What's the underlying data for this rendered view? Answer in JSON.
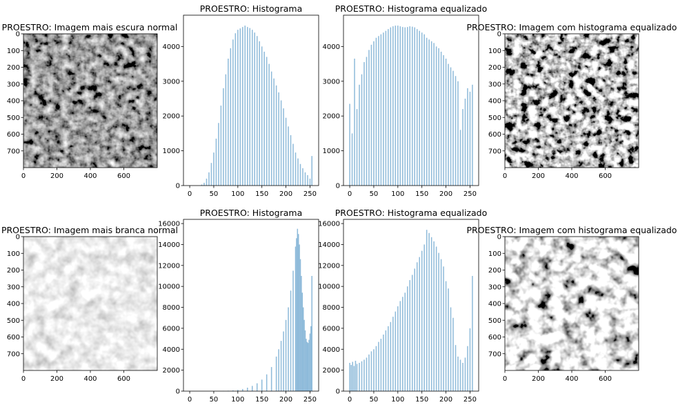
{
  "chart_data": [
    {
      "type": "image",
      "title": "PROESTRO: Imagem mais escura normal",
      "texture": "dark",
      "xticks": [
        0,
        200,
        400,
        600
      ],
      "yticks": [
        0,
        100,
        200,
        300,
        400,
        500,
        600,
        700
      ],
      "xlim": [
        0,
        800
      ],
      "ylim": [
        800,
        0
      ]
    },
    {
      "type": "bar",
      "title": "PROESTRO: Histograma",
      "color": "#8fbbda",
      "xticks": [
        0,
        50,
        100,
        150,
        200,
        250
      ],
      "yticks": [
        0,
        1000,
        2000,
        3000,
        4000
      ],
      "xlim": [
        -13,
        268
      ],
      "ylim": [
        0,
        4900
      ],
      "x": [
        20,
        25,
        30,
        35,
        40,
        45,
        50,
        55,
        60,
        65,
        70,
        75,
        80,
        85,
        90,
        95,
        100,
        105,
        110,
        115,
        120,
        125,
        130,
        135,
        140,
        145,
        150,
        155,
        160,
        165,
        170,
        175,
        180,
        185,
        190,
        195,
        200,
        205,
        210,
        215,
        220,
        225,
        230,
        235,
        240,
        245,
        250,
        254
      ],
      "values": [
        0,
        30,
        80,
        200,
        380,
        650,
        950,
        1350,
        1800,
        2300,
        2800,
        3200,
        3650,
        3950,
        4200,
        4380,
        4480,
        4520,
        4560,
        4600,
        4560,
        4530,
        4480,
        4400,
        4300,
        4150,
        4000,
        3850,
        3700,
        3500,
        3280,
        3080,
        2880,
        2680,
        2450,
        2220,
        1950,
        1700,
        1450,
        1200,
        950,
        780,
        620,
        500,
        380,
        300,
        200,
        850
      ]
    },
    {
      "type": "bar",
      "title": "PROESTRO: Histograma equalizado",
      "color": "#8fbbda",
      "xticks": [
        0,
        50,
        100,
        150,
        200,
        250
      ],
      "yticks": [
        0,
        1000,
        2000,
        3000,
        4000
      ],
      "xlim": [
        -13,
        268
      ],
      "ylim": [
        0,
        4900
      ],
      "x": [
        0,
        5,
        10,
        15,
        20,
        25,
        30,
        35,
        40,
        45,
        50,
        55,
        60,
        65,
        70,
        75,
        80,
        85,
        90,
        95,
        100,
        105,
        110,
        115,
        120,
        125,
        130,
        135,
        140,
        145,
        150,
        155,
        160,
        165,
        170,
        175,
        180,
        185,
        190,
        195,
        200,
        205,
        210,
        215,
        220,
        225,
        230,
        235,
        240,
        245,
        250,
        255
      ],
      "values": [
        2350,
        1500,
        3650,
        2200,
        2900,
        3200,
        3550,
        3700,
        3900,
        4050,
        4150,
        4250,
        4300,
        4350,
        4400,
        4450,
        4500,
        4550,
        4580,
        4600,
        4600,
        4580,
        4560,
        4550,
        4560,
        4580,
        4570,
        4550,
        4500,
        4450,
        4400,
        4350,
        4250,
        4200,
        4150,
        4100,
        4000,
        3950,
        3850,
        3750,
        3650,
        3500,
        3400,
        3300,
        3150,
        3000,
        1600,
        2200,
        2500,
        2800,
        2700,
        2900
      ]
    },
    {
      "type": "image",
      "title": "PROESTRO: Imagem com histograma equalizado",
      "texture": "dark-eq",
      "xticks": [
        0,
        200,
        400,
        600
      ],
      "yticks": [
        0,
        100,
        200,
        300,
        400,
        500,
        600,
        700
      ],
      "xlim": [
        0,
        800
      ],
      "ylim": [
        800,
        0
      ]
    },
    {
      "type": "image",
      "title": "PROESTRO: Imagem mais branca normal",
      "texture": "light",
      "xticks": [
        0,
        200,
        400,
        600
      ],
      "yticks": [
        0,
        100,
        200,
        300,
        400,
        500,
        600,
        700
      ],
      "xlim": [
        0,
        800
      ],
      "ylim": [
        800,
        0
      ]
    },
    {
      "type": "bar",
      "title": "PROESTRO: Histograma",
      "color": "#8fbbda",
      "xticks": [
        0,
        50,
        100,
        150,
        200,
        250
      ],
      "yticks": [
        0,
        2000,
        4000,
        6000,
        8000,
        10000,
        12000,
        14000,
        16000
      ],
      "xlim": [
        -13,
        268
      ],
      "ylim": [
        0,
        16400
      ],
      "x": [
        70,
        80,
        90,
        100,
        110,
        120,
        130,
        140,
        150,
        160,
        170,
        180,
        185,
        190,
        195,
        200,
        205,
        210,
        215,
        220,
        222,
        224,
        226,
        228,
        230,
        232,
        234,
        236,
        238,
        240,
        242,
        244,
        246,
        248,
        250,
        252,
        254
      ],
      "values": [
        20,
        40,
        70,
        120,
        200,
        330,
        500,
        750,
        1100,
        1600,
        2300,
        3300,
        4000,
        4800,
        5700,
        6800,
        8000,
        9600,
        11500,
        13800,
        14600,
        15500,
        15000,
        14000,
        12600,
        11000,
        9400,
        8000,
        6800,
        5800,
        5000,
        4700,
        4600,
        4900,
        5500,
        6200,
        11000
      ]
    },
    {
      "type": "bar",
      "title": "PROESTRO: Histograma equalizado",
      "color": "#8fbbda",
      "xticks": [
        0,
        50,
        100,
        150,
        200,
        250
      ],
      "yticks": [
        0,
        2000,
        4000,
        6000,
        8000,
        10000,
        12000,
        14000,
        16000
      ],
      "xlim": [
        -13,
        268
      ],
      "ylim": [
        0,
        16400
      ],
      "x": [
        0,
        3,
        6,
        9,
        12,
        15,
        20,
        25,
        30,
        35,
        40,
        45,
        50,
        55,
        60,
        65,
        70,
        75,
        80,
        85,
        90,
        95,
        100,
        105,
        110,
        115,
        120,
        125,
        130,
        135,
        140,
        145,
        150,
        155,
        160,
        165,
        170,
        175,
        180,
        185,
        190,
        195,
        200,
        205,
        210,
        215,
        220,
        225,
        230,
        235,
        240,
        245,
        250,
        255
      ],
      "values": [
        2700,
        2500,
        2800,
        2400,
        2900,
        2600,
        2700,
        2850,
        3000,
        3200,
        3500,
        3800,
        4000,
        4300,
        4700,
        5000,
        5400,
        5800,
        6200,
        6600,
        7100,
        7600,
        8100,
        8600,
        9000,
        9400,
        10000,
        10600,
        11100,
        11700,
        12300,
        12800,
        13400,
        14000,
        15400,
        15100,
        14700,
        14300,
        13800,
        13200,
        12600,
        11900,
        10500,
        9800,
        8000,
        7000,
        4400,
        3300,
        3000,
        2700,
        3200,
        4300,
        6000,
        11000
      ]
    },
    {
      "type": "image",
      "title": "PROESTRO: Imagem com histograma equalizado",
      "texture": "light-eq",
      "xticks": [
        0,
        200,
        400,
        600
      ],
      "yticks": [
        0,
        100,
        200,
        300,
        400,
        500,
        600,
        700
      ],
      "xlim": [
        0,
        800
      ],
      "ylim": [
        800,
        0
      ]
    }
  ]
}
